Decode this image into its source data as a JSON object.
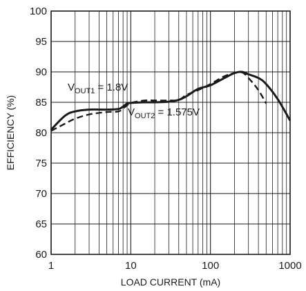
{
  "chart_data": {
    "type": "line",
    "title": "",
    "xlabel": "LOAD CURRENT (mA)",
    "ylabel": "EFFICIENCY (%)",
    "xscale": "log",
    "xlim": [
      1,
      1000
    ],
    "ylim": [
      60,
      100
    ],
    "grid": true,
    "x_ticks": [
      "1",
      "10",
      "100",
      "1000"
    ],
    "y_ticks": [
      "60",
      "65",
      "70",
      "75",
      "80",
      "85",
      "90",
      "95",
      "100"
    ],
    "series": [
      {
        "line_style": "solid",
        "color": "#1a1a1a",
        "x": [
          1,
          1.5,
          2,
          3,
          5,
          7,
          8,
          9,
          10,
          15,
          20,
          30,
          40,
          50,
          70,
          100,
          150,
          200,
          250,
          300,
          400,
          500,
          700,
          1000
        ],
        "y": [
          80.5,
          82.8,
          83.5,
          83.8,
          83.8,
          83.9,
          84.3,
          84.8,
          84.9,
          85.0,
          85.0,
          85.1,
          85.4,
          86.0,
          87.2,
          87.8,
          89.0,
          89.8,
          90.0,
          89.6,
          89.0,
          88.0,
          85.5,
          82.0
        ]
      },
      {
        "line_style": "dashed",
        "color": "#1a1a1a",
        "x": [
          1,
          1.5,
          2,
          3,
          5,
          7,
          8,
          9,
          10,
          15,
          20,
          30,
          40,
          50,
          70,
          100,
          150,
          200,
          250,
          300,
          400,
          500
        ],
        "y": [
          80.3,
          81.5,
          82.3,
          83.0,
          83.4,
          83.5,
          84.0,
          84.5,
          84.9,
          85.3,
          85.3,
          85.3,
          85.4,
          86.2,
          87.0,
          88.0,
          89.3,
          89.8,
          89.9,
          89.0,
          87.0,
          84.8
        ]
      }
    ],
    "annotations": [
      {
        "main": "V",
        "sub": "OUT1",
        "rest": " = 1.8V"
      },
      {
        "main": "V",
        "sub": "OUT2",
        "rest": " = 1.575V"
      }
    ]
  }
}
